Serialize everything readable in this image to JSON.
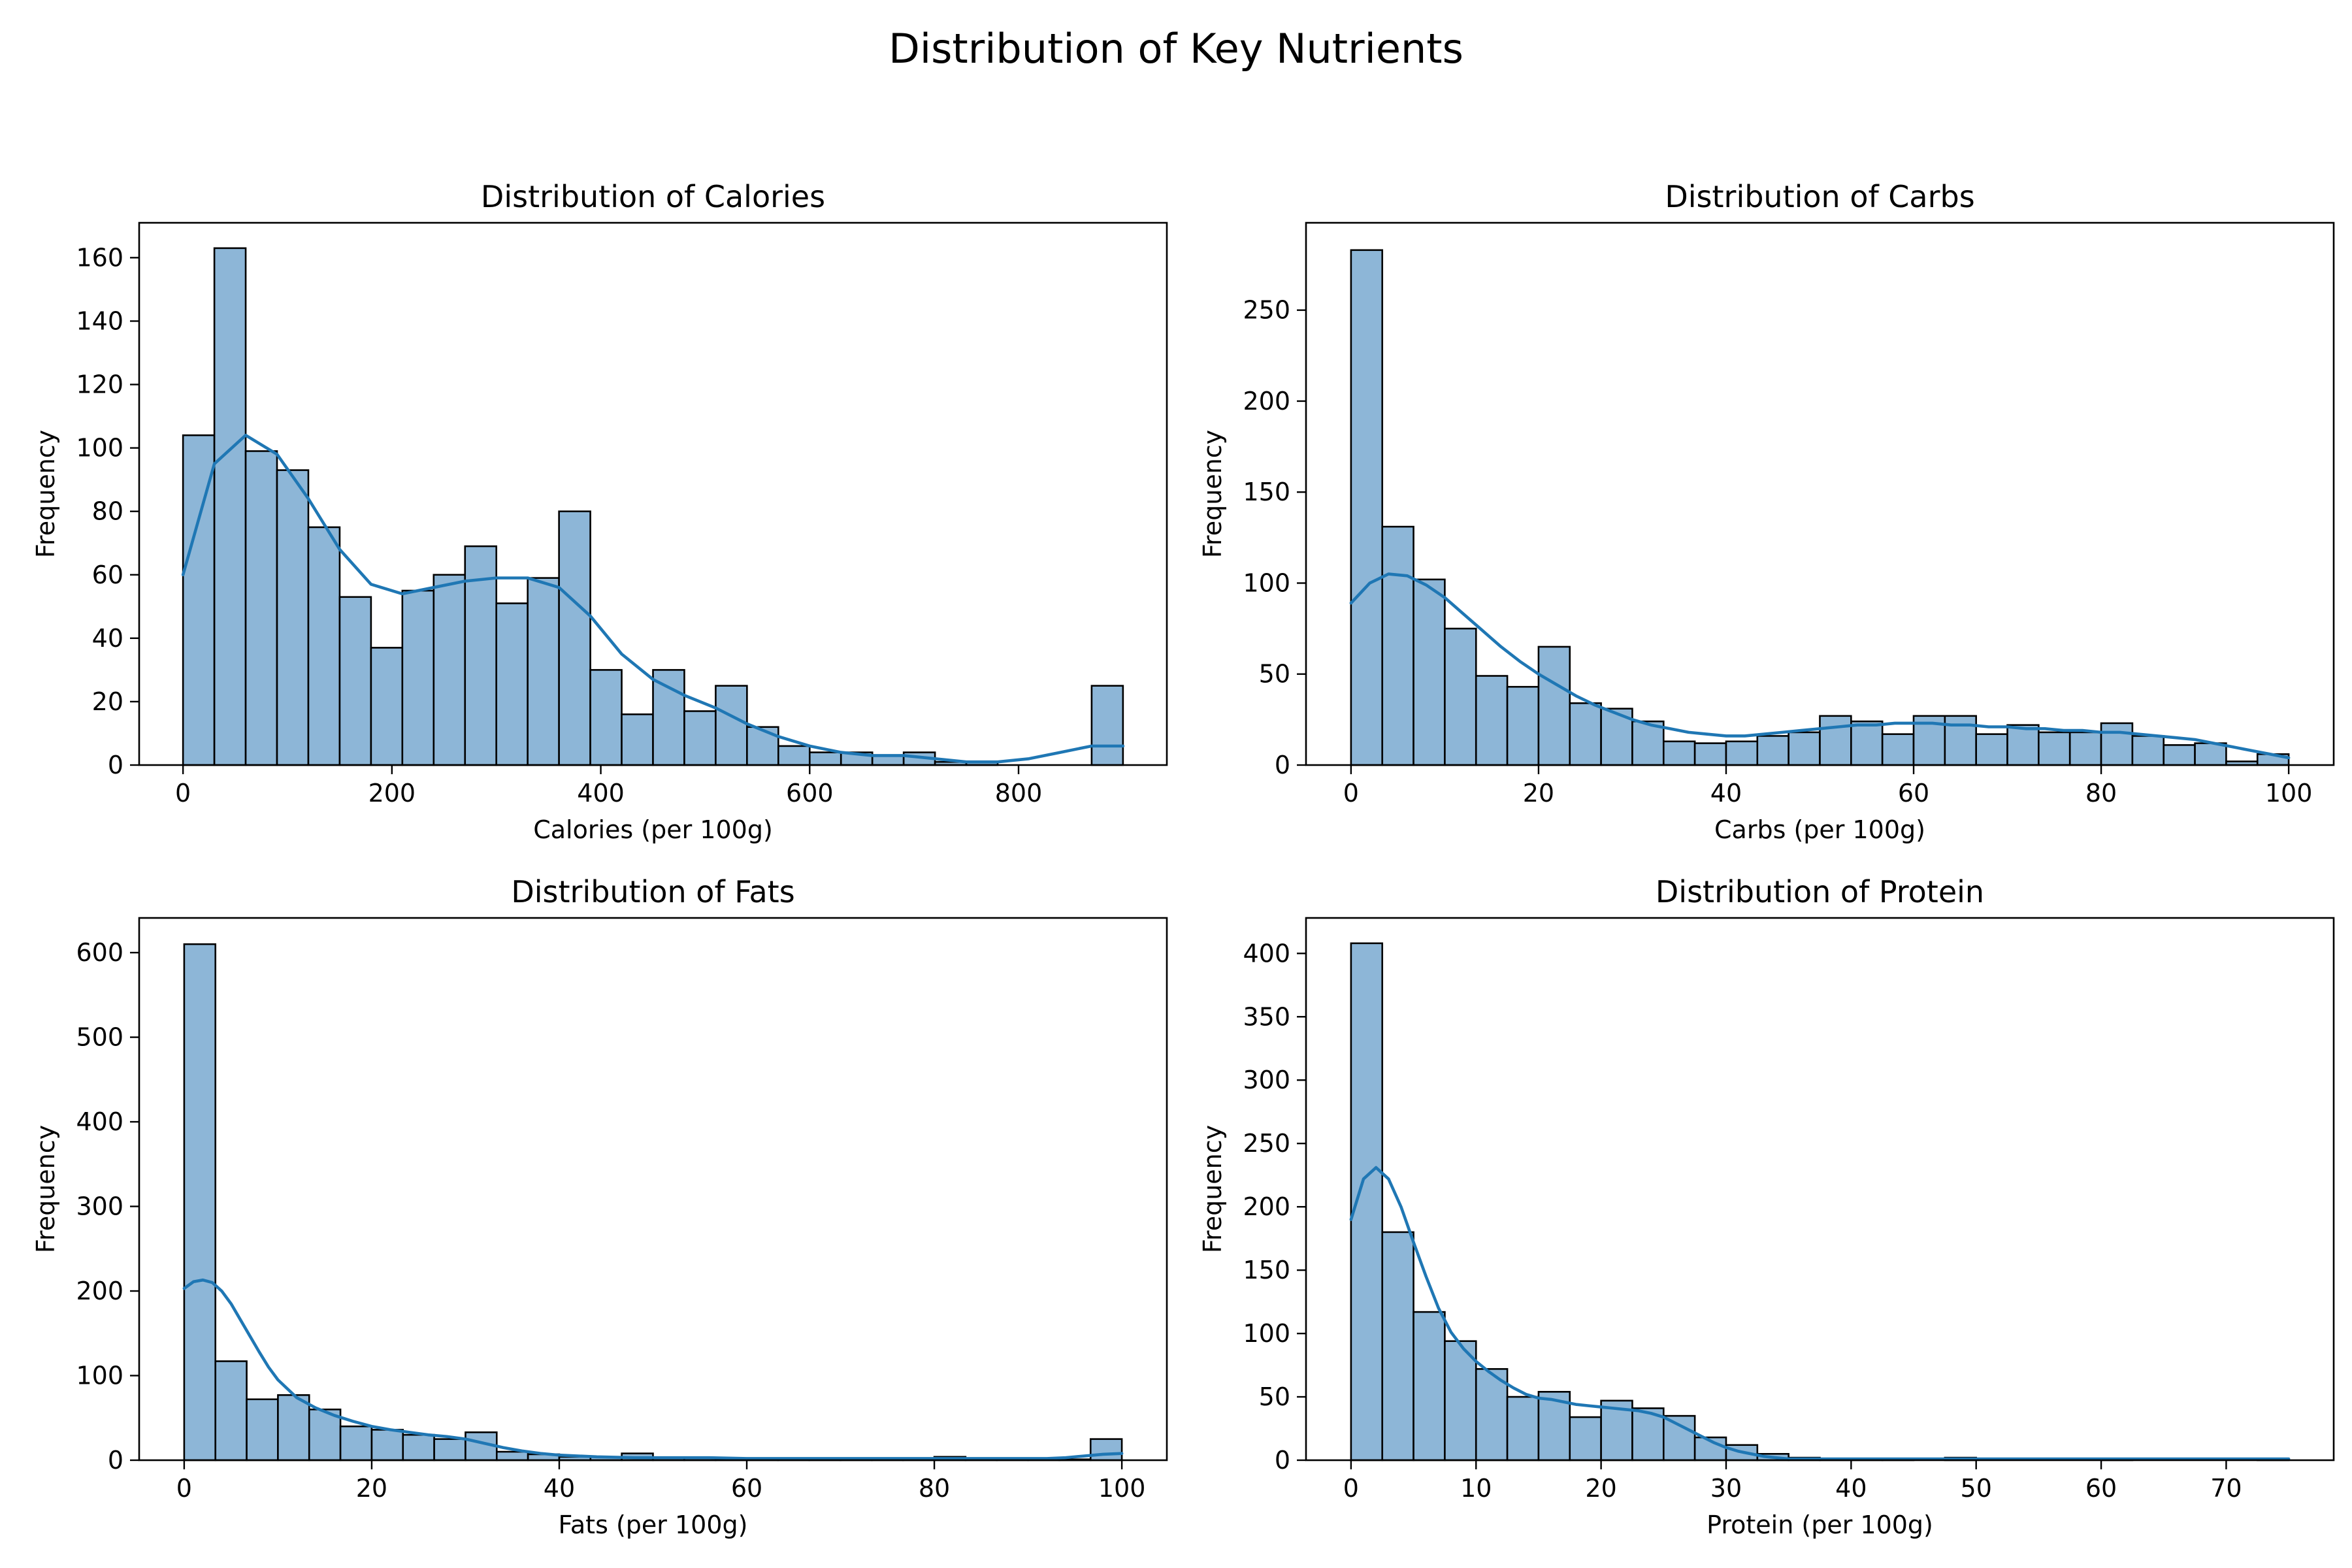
{
  "suptitle": "Distribution of Key Nutrients",
  "colors": {
    "bar_fill": "#8db6d7",
    "bar_edge": "#000000",
    "kde_line": "#1f77b4"
  },
  "chart_data": [
    {
      "type": "bar",
      "title": "Distribution of Calories",
      "xlabel": "Calories (per 100g)",
      "ylabel": "Frequency",
      "xlim": [
        -42,
        942
      ],
      "ylim": [
        0,
        171
      ],
      "xticks": [
        0,
        200,
        400,
        600,
        800
      ],
      "yticks": [
        0,
        20,
        40,
        60,
        80,
        100,
        120,
        140,
        160
      ],
      "bins": {
        "start": 0,
        "width": 30,
        "count": 30
      },
      "values": [
        104,
        163,
        99,
        93,
        75,
        53,
        37,
        55,
        60,
        69,
        51,
        59,
        80,
        30,
        16,
        30,
        17,
        25,
        12,
        6,
        4,
        4,
        3,
        4,
        1,
        1,
        0,
        0,
        0,
        25
      ],
      "kde": {
        "x": [
          0,
          30,
          60,
          90,
          120,
          150,
          180,
          210,
          240,
          270,
          300,
          330,
          360,
          390,
          420,
          450,
          480,
          510,
          540,
          570,
          600,
          630,
          660,
          690,
          720,
          750,
          780,
          810,
          840,
          870,
          900
        ],
        "y": [
          60,
          95,
          104,
          98,
          84,
          68,
          57,
          54,
          56,
          58,
          59,
          59,
          56,
          47,
          35,
          27,
          22,
          18,
          13,
          9,
          6,
          4,
          3,
          3,
          2,
          1,
          1,
          2,
          4,
          6,
          6
        ]
      }
    },
    {
      "type": "bar",
      "title": "Distribution of Carbs",
      "xlabel": "Carbs (per 100g)",
      "ylabel": "Frequency",
      "xlim": [
        -4.8,
        104.8
      ],
      "ylim": [
        0,
        298
      ],
      "xticks": [
        0,
        20,
        40,
        60,
        80,
        100
      ],
      "yticks": [
        0,
        50,
        100,
        150,
        200,
        250
      ],
      "bins": {
        "start": 0,
        "width": 3.3333,
        "count": 30
      },
      "values": [
        283,
        131,
        102,
        75,
        49,
        43,
        65,
        34,
        31,
        24,
        13,
        12,
        13,
        16,
        18,
        27,
        24,
        17,
        27,
        27,
        17,
        22,
        18,
        18,
        23,
        16,
        11,
        12,
        2,
        6
      ],
      "kde": {
        "x": [
          0,
          2,
          4,
          6,
          8,
          10,
          12,
          14,
          16,
          18,
          20,
          22,
          24,
          26,
          28,
          30,
          32,
          34,
          36,
          38,
          40,
          42,
          44,
          46,
          48,
          50,
          52,
          54,
          56,
          58,
          60,
          62,
          64,
          66,
          68,
          70,
          72,
          74,
          76,
          78,
          80,
          82,
          84,
          86,
          88,
          90,
          92,
          94,
          96,
          98,
          100
        ],
        "y": [
          89,
          100,
          105,
          104,
          99,
          92,
          83,
          74,
          65,
          57,
          50,
          44,
          38,
          33,
          29,
          25,
          22,
          20,
          18,
          17,
          16,
          16,
          17,
          18,
          19,
          20,
          21,
          22,
          22,
          23,
          23,
          23,
          22,
          22,
          21,
          21,
          20,
          20,
          19,
          19,
          18,
          18,
          17,
          16,
          15,
          14,
          12,
          10,
          8,
          6,
          4
        ]
      }
    },
    {
      "type": "bar",
      "title": "Distribution of Fats",
      "xlabel": "Fats (per 100g)",
      "ylabel": "Frequency",
      "xlim": [
        -4.8,
        104.8
      ],
      "ylim": [
        0,
        641
      ],
      "xticks": [
        0,
        20,
        40,
        60,
        80,
        100
      ],
      "yticks": [
        0,
        100,
        200,
        300,
        400,
        500,
        600
      ],
      "bins": {
        "start": 0,
        "width": 3.3333,
        "count": 30
      },
      "values": [
        610,
        117,
        72,
        77,
        60,
        40,
        36,
        30,
        25,
        33,
        10,
        7,
        4,
        4,
        8,
        3,
        3,
        2,
        2,
        2,
        2,
        2,
        2,
        2,
        4,
        1,
        1,
        1,
        1,
        25
      ],
      "kde": {
        "x": [
          0,
          1,
          2,
          3,
          4,
          5,
          6,
          7,
          8,
          9,
          10,
          12,
          14,
          16,
          18,
          20,
          22,
          24,
          26,
          28,
          30,
          32,
          34,
          36,
          38,
          40,
          44,
          48,
          52,
          56,
          60,
          64,
          68,
          72,
          76,
          80,
          84,
          88,
          92,
          94,
          96,
          98,
          100
        ],
        "y": [
          203,
          211,
          213,
          210,
          200,
          185,
          166,
          147,
          128,
          110,
          95,
          74,
          62,
          53,
          46,
          40,
          36,
          33,
          30,
          28,
          25,
          20,
          15,
          11,
          8,
          6,
          4,
          3,
          3,
          3,
          2,
          2,
          2,
          2,
          2,
          2,
          2,
          2,
          2,
          3,
          5,
          7,
          8
        ]
      }
    },
    {
      "type": "bar",
      "title": "Distribution of Protein",
      "xlabel": "Protein (per 100g)",
      "ylabel": "Frequency",
      "xlim": [
        -3.6,
        78.6
      ],
      "ylim": [
        0,
        428
      ],
      "xticks": [
        0,
        10,
        20,
        30,
        40,
        50,
        60,
        70
      ],
      "yticks": [
        0,
        50,
        100,
        150,
        200,
        250,
        300,
        350,
        400
      ],
      "bins": {
        "start": 0,
        "width": 2.5,
        "count": 30
      },
      "values": [
        408,
        180,
        117,
        94,
        72,
        50,
        54,
        34,
        47,
        41,
        35,
        18,
        12,
        5,
        2,
        1,
        1,
        1,
        0,
        2,
        0,
        0,
        0,
        0,
        1,
        0,
        0,
        0,
        0,
        1
      ],
      "kde": {
        "x": [
          0,
          1,
          2,
          3,
          4,
          5,
          6,
          7,
          8,
          9,
          10,
          11,
          12,
          13,
          14,
          15,
          16,
          17,
          18,
          19,
          20,
          21,
          22,
          23,
          24,
          25,
          26,
          27,
          28,
          29,
          30,
          31,
          32,
          33,
          34,
          35,
          36,
          38,
          40,
          45,
          50,
          55,
          60,
          65,
          70,
          75
        ],
        "y": [
          190,
          222,
          231,
          222,
          200,
          172,
          145,
          120,
          101,
          88,
          78,
          70,
          63,
          57,
          52,
          49,
          48,
          46,
          44,
          43,
          42,
          41,
          40,
          39,
          37,
          34,
          29,
          24,
          19,
          14,
          10,
          7,
          5,
          3,
          2,
          1,
          1,
          1,
          1,
          1,
          1,
          1,
          1,
          1,
          1,
          1
        ]
      }
    }
  ]
}
